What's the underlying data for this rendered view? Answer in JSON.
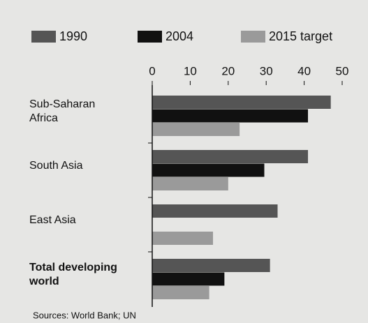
{
  "chart_data": {
    "type": "hbar",
    "categories": [
      "Sub-Saharan Africa",
      "South Asia",
      "East Asia",
      "Total developing world"
    ],
    "series": [
      {
        "name": "1990",
        "color": "#555555",
        "values": [
          47,
          41,
          33,
          31
        ]
      },
      {
        "name": "2004",
        "color": "#111111",
        "values": [
          41,
          29.5,
          null,
          19
        ]
      },
      {
        "name": "2015 target",
        "color": "#9a9a9a",
        "values": [
          23,
          20,
          16,
          15
        ]
      }
    ],
    "xlim": [
      0,
      50
    ],
    "xticks": [
      0,
      10,
      20,
      30,
      40,
      50
    ],
    "legend": "top",
    "source": "Sources: World Bank; UN"
  }
}
